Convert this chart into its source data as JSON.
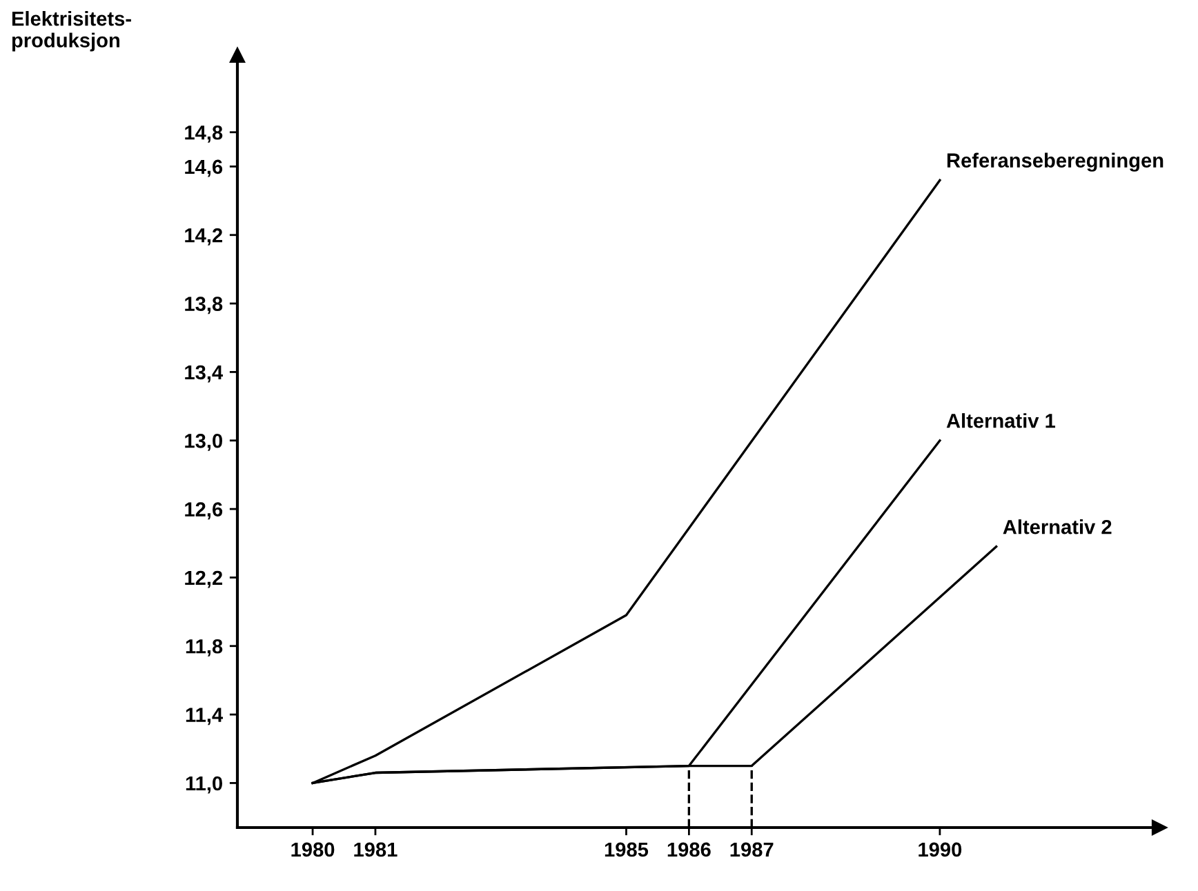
{
  "chart_data": {
    "type": "line",
    "ylabel": "Elektrisitets-\nproduksjon",
    "series": [
      {
        "name": "Referanseberegningen",
        "color": "#000000",
        "x": [
          1980,
          1981,
          1985,
          1990
        ],
        "values": [
          11.0,
          11.16,
          11.98,
          14.52
        ]
      },
      {
        "name": "Alternativ 1",
        "color": "#000000",
        "x": [
          1980,
          1981,
          1986,
          1990
        ],
        "values": [
          11.0,
          11.06,
          11.1,
          13.0
        ]
      },
      {
        "name": "Alternativ 2",
        "color": "#000000",
        "x": [
          1980,
          1981,
          1986,
          1987,
          1990.9
        ],
        "values": [
          11.0,
          11.06,
          11.1,
          11.1,
          12.38
        ]
      },
      {
        "color": "#000000",
        "line_style": "dashed",
        "x": [
          1986,
          1986
        ],
        "values": [
          10.74,
          11.1
        ]
      },
      {
        "color": "#000000",
        "line_style": "dashed",
        "x": [
          1987,
          1987
        ],
        "values": [
          10.74,
          11.1
        ]
      }
    ],
    "xlim": [
      1978.8,
      1993.5
    ],
    "ylim": [
      10.74,
      15.25
    ],
    "xticks": [
      1980,
      1981,
      1985,
      1986,
      1987,
      1990
    ],
    "yticks": [
      {
        "value": 11.0,
        "label": "11,0"
      },
      {
        "value": 11.4,
        "label": "11,4"
      },
      {
        "value": 11.8,
        "label": "11,8"
      },
      {
        "value": 12.2,
        "label": "12,2"
      },
      {
        "value": 12.6,
        "label": "12,6"
      },
      {
        "value": 13.0,
        "label": "13,0"
      },
      {
        "value": 13.4,
        "label": "13,4"
      },
      {
        "value": 13.8,
        "label": "13,8"
      },
      {
        "value": 14.2,
        "label": "14,2"
      },
      {
        "value": 14.6,
        "label": "14,6"
      },
      {
        "value": 14.8,
        "label": "14,8"
      }
    ],
    "grid": false,
    "legend": false,
    "marker": "none",
    "line_style": "solid"
  }
}
